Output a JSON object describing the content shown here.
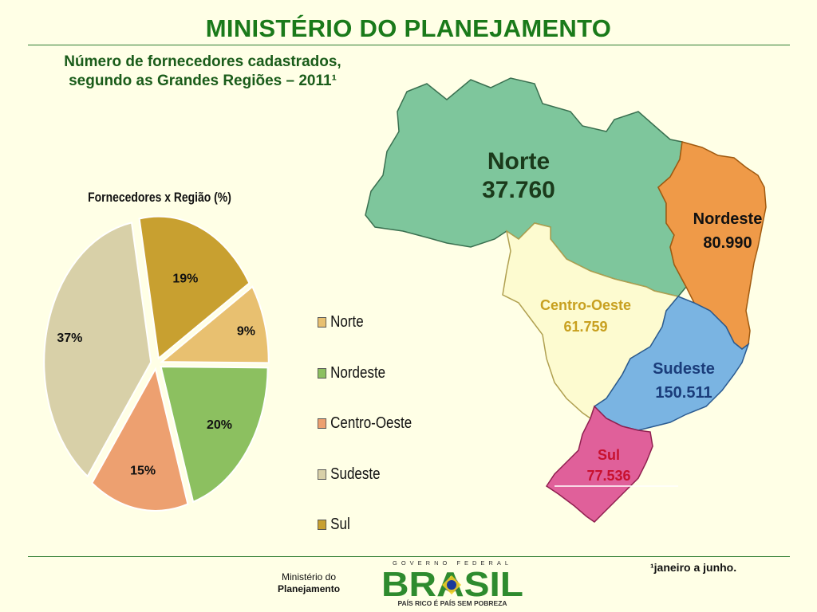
{
  "header": {
    "title": "MINISTÉRIO DO PLANEJAMENTO"
  },
  "subtitle": {
    "line1": "Número de fornecedores cadastrados,",
    "line2": "segundo as Grandes Regiões – 2011¹"
  },
  "chart_data": {
    "type": "pie",
    "title": "Fornecedores x Região (%)",
    "categories": [
      "Norte",
      "Nordeste",
      "Centro-Oeste",
      "Sudeste",
      "Sul"
    ],
    "values": [
      9,
      20,
      15,
      37,
      19
    ],
    "labels": [
      "9%",
      "20%",
      "15%",
      "37%",
      "19%"
    ],
    "colors": [
      "#e8c070",
      "#8cc060",
      "#eda070",
      "#d8d0a8",
      "#c8a030"
    ],
    "legend_position": "right"
  },
  "map": {
    "regions": [
      {
        "name": "Norte",
        "value": "37.760",
        "color": "#7ec69c",
        "text_color": "#1b3a1b"
      },
      {
        "name": "Nordeste",
        "value": "80.990",
        "color": "#ef9a48",
        "text_color": "#111111"
      },
      {
        "name": "Centro-Oeste",
        "value": "61.759",
        "color": "#fdfbd0",
        "text_color": "#c8a020"
      },
      {
        "name": "Sudeste",
        "value": "150.511",
        "color": "#7ab4e2",
        "text_color": "#1a3c7a"
      },
      {
        "name": "Sul",
        "value": "77.536",
        "color": "#e0609a",
        "text_color": "#c8102e"
      }
    ]
  },
  "footnote": "¹janeiro a junho.",
  "footer": {
    "ministerio_line1": "Ministério do",
    "ministerio_line2": "Planejamento",
    "gov_line": "GOVERNO FEDERAL",
    "brand": "BRASIL",
    "slogan": "PAÍS RICO É PAÍS SEM POBREZA"
  }
}
